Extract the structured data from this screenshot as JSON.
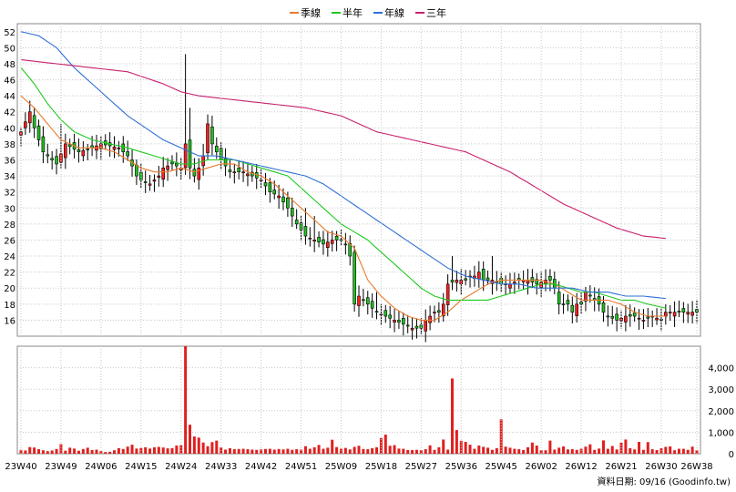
{
  "chart_data": {
    "type": "candlestick",
    "legend": [
      {
        "name": "季線",
        "color": "#e87a2c"
      },
      {
        "name": "半年",
        "color": "#1ec81e"
      },
      {
        "name": "年線",
        "color": "#2f6fd6"
      },
      {
        "name": "三年",
        "color": "#c8206e"
      }
    ],
    "price_axis": {
      "min": 14,
      "max": 53,
      "ticks": [
        16,
        18,
        20,
        22,
        24,
        26,
        28,
        30,
        32,
        34,
        36,
        38,
        40,
        42,
        44,
        46,
        48,
        50,
        52
      ]
    },
    "volume_axis": {
      "min": 0,
      "max": 5000,
      "ticks": [
        0,
        1000,
        2000,
        3000,
        4000
      ],
      "tick_labels": [
        "0",
        "1,000",
        "2,000",
        "3,000",
        "4,000"
      ]
    },
    "x_labels": [
      {
        "week": 0,
        "label": "23W40"
      },
      {
        "week": 9,
        "label": "23W49"
      },
      {
        "week": 18,
        "label": "24W06"
      },
      {
        "week": 27,
        "label": "24W15"
      },
      {
        "week": 36,
        "label": "24W24"
      },
      {
        "week": 45,
        "label": "24W33"
      },
      {
        "week": 54,
        "label": "24W42"
      },
      {
        "week": 63,
        "label": "24W51"
      },
      {
        "week": 72,
        "label": "25W09"
      },
      {
        "week": 81,
        "label": "25W18"
      },
      {
        "week": 90,
        "label": "25W27"
      },
      {
        "week": 99,
        "label": "25W36"
      },
      {
        "week": 108,
        "label": "25W45"
      },
      {
        "week": 117,
        "label": "26W02"
      },
      {
        "week": 126,
        "label": "26W12"
      },
      {
        "week": 135,
        "label": "26W21"
      },
      {
        "week": 144,
        "label": "26W30"
      },
      {
        "week": 152,
        "label": "26W38"
      }
    ],
    "close_path": [
      [
        0,
        39.5
      ],
      [
        2,
        42
      ],
      [
        3,
        40
      ],
      [
        5,
        37
      ],
      [
        7,
        36
      ],
      [
        8,
        35.5
      ],
      [
        10,
        38
      ],
      [
        13,
        37
      ],
      [
        16,
        37.5
      ],
      [
        18,
        38
      ],
      [
        22,
        37.5
      ],
      [
        24,
        36.5
      ],
      [
        26,
        34
      ],
      [
        27,
        33.5
      ],
      [
        29,
        33
      ],
      [
        31,
        34
      ],
      [
        32,
        35
      ],
      [
        34,
        35.5
      ],
      [
        36,
        35
      ],
      [
        37,
        38
      ],
      [
        38,
        35
      ],
      [
        39,
        34
      ],
      [
        40,
        35
      ],
      [
        41,
        36.5
      ],
      [
        42,
        40.5
      ],
      [
        43,
        38
      ],
      [
        45,
        36
      ],
      [
        47,
        34.5
      ],
      [
        50,
        34.5
      ],
      [
        52,
        34
      ],
      [
        54,
        33.5
      ],
      [
        56,
        32
      ],
      [
        58,
        31.5
      ],
      [
        60,
        30
      ],
      [
        62,
        28
      ],
      [
        64,
        26.5
      ],
      [
        66,
        26
      ],
      [
        68,
        25.5
      ],
      [
        70,
        26
      ],
      [
        72,
        26
      ],
      [
        73,
        25.5
      ],
      [
        74,
        24
      ],
      [
        75,
        18
      ],
      [
        76,
        19
      ],
      [
        78,
        18
      ],
      [
        80,
        17
      ],
      [
        82,
        16.5
      ],
      [
        84,
        16
      ],
      [
        86,
        15.5
      ],
      [
        88,
        15
      ],
      [
        90,
        15
      ],
      [
        91,
        16
      ],
      [
        93,
        17
      ],
      [
        94,
        17
      ],
      [
        95,
        18
      ],
      [
        96,
        20.5
      ],
      [
        98,
        21
      ],
      [
        100,
        21
      ],
      [
        101,
        21.5
      ],
      [
        102,
        21.5
      ],
      [
        103,
        22
      ],
      [
        104,
        21
      ],
      [
        106,
        21
      ],
      [
        108,
        20.5
      ],
      [
        110,
        20.5
      ],
      [
        112,
        21
      ],
      [
        114,
        21
      ],
      [
        116,
        20.5
      ],
      [
        118,
        21
      ],
      [
        119,
        21
      ],
      [
        120,
        20
      ],
      [
        121,
        18
      ],
      [
        123,
        18
      ],
      [
        124,
        17
      ],
      [
        125,
        18
      ],
      [
        126,
        18
      ],
      [
        127,
        19.5
      ],
      [
        128,
        19
      ],
      [
        129,
        18.5
      ],
      [
        130,
        18
      ],
      [
        131,
        17
      ],
      [
        132,
        16.5
      ],
      [
        134,
        16
      ],
      [
        136,
        16.5
      ],
      [
        138,
        16.5
      ],
      [
        140,
        16
      ],
      [
        142,
        16.5
      ],
      [
        144,
        16
      ],
      [
        145,
        17
      ]
    ],
    "high_spikes": [
      {
        "week": 2,
        "high": 43
      },
      {
        "week": 3,
        "high": 41.5
      },
      {
        "week": 9,
        "high": 40.5
      },
      {
        "week": 26,
        "high": 36
      },
      {
        "week": 37,
        "high": 49.2
      },
      {
        "week": 38,
        "high": 42.5
      },
      {
        "week": 41,
        "high": 38
      },
      {
        "week": 64,
        "high": 30
      },
      {
        "week": 66,
        "high": 29
      },
      {
        "week": 75,
        "high": 25
      },
      {
        "week": 80,
        "high": 19.5
      },
      {
        "week": 97,
        "high": 24
      },
      {
        "week": 106,
        "high": 24
      },
      {
        "week": 120,
        "high": 21.5
      },
      {
        "week": 121,
        "high": 20.5
      }
    ],
    "moving_averages": [
      {
        "name": "季線",
        "points": [
          [
            0,
            44
          ],
          [
            3,
            42.5
          ],
          [
            6,
            40.5
          ],
          [
            9,
            38.5
          ],
          [
            13,
            37.5
          ],
          [
            18,
            37.5
          ],
          [
            21,
            37
          ],
          [
            24,
            36
          ],
          [
            27,
            35
          ],
          [
            30,
            34.5
          ],
          [
            33,
            34.5
          ],
          [
            36,
            35
          ],
          [
            39,
            34.5
          ],
          [
            42,
            35
          ],
          [
            45,
            35.5
          ],
          [
            48,
            35.5
          ],
          [
            51,
            34.5
          ],
          [
            54,
            34
          ],
          [
            57,
            33
          ],
          [
            60,
            31.5
          ],
          [
            63,
            30
          ],
          [
            66,
            28.5
          ],
          [
            69,
            27
          ],
          [
            72,
            26.5
          ],
          [
            75,
            25
          ],
          [
            78,
            21
          ],
          [
            81,
            19
          ],
          [
            84,
            17.5
          ],
          [
            87,
            16.5
          ],
          [
            90,
            16
          ],
          [
            93,
            16
          ],
          [
            96,
            17
          ],
          [
            99,
            18.5
          ],
          [
            102,
            19.5
          ],
          [
            105,
            20.5
          ],
          [
            108,
            21
          ],
          [
            111,
            21
          ],
          [
            114,
            21
          ],
          [
            117,
            21
          ],
          [
            120,
            20.5
          ],
          [
            123,
            19.5
          ],
          [
            126,
            18.5
          ],
          [
            129,
            18.5
          ],
          [
            132,
            18.5
          ],
          [
            135,
            18
          ],
          [
            138,
            17
          ],
          [
            141,
            16.5
          ],
          [
            145,
            16.5
          ]
        ]
      },
      {
        "name": "半年",
        "points": [
          [
            0,
            47.5
          ],
          [
            3,
            45.5
          ],
          [
            6,
            43
          ],
          [
            9,
            41
          ],
          [
            12,
            39.5
          ],
          [
            16,
            38.5
          ],
          [
            20,
            38
          ],
          [
            24,
            37.5
          ],
          [
            27,
            37
          ],
          [
            30,
            36.5
          ],
          [
            33,
            36
          ],
          [
            36,
            35.5
          ],
          [
            39,
            35.5
          ],
          [
            42,
            36
          ],
          [
            45,
            36
          ],
          [
            48,
            36
          ],
          [
            51,
            35.5
          ],
          [
            54,
            35
          ],
          [
            57,
            34.5
          ],
          [
            60,
            34
          ],
          [
            63,
            32.5
          ],
          [
            66,
            31
          ],
          [
            69,
            29.5
          ],
          [
            72,
            28
          ],
          [
            75,
            27
          ],
          [
            78,
            26
          ],
          [
            81,
            24.5
          ],
          [
            84,
            23
          ],
          [
            87,
            21.5
          ],
          [
            90,
            20
          ],
          [
            93,
            19
          ],
          [
            96,
            18.5
          ],
          [
            99,
            18.5
          ],
          [
            102,
            18.5
          ],
          [
            105,
            18.5
          ],
          [
            108,
            19
          ],
          [
            111,
            19.5
          ],
          [
            114,
            20
          ],
          [
            117,
            20.5
          ],
          [
            120,
            20.5
          ],
          [
            123,
            20
          ],
          [
            126,
            19.5
          ],
          [
            129,
            19.5
          ],
          [
            132,
            19
          ],
          [
            135,
            18.5
          ],
          [
            138,
            18.5
          ],
          [
            141,
            18
          ],
          [
            145,
            17.5
          ]
        ]
      },
      {
        "name": "年線",
        "points": [
          [
            0,
            52
          ],
          [
            4,
            51.5
          ],
          [
            8,
            50
          ],
          [
            12,
            47.5
          ],
          [
            16,
            45.5
          ],
          [
            20,
            43.5
          ],
          [
            24,
            41.5
          ],
          [
            28,
            40
          ],
          [
            32,
            38.5
          ],
          [
            36,
            37.5
          ],
          [
            40,
            36.5
          ],
          [
            44,
            36.5
          ],
          [
            48,
            36
          ],
          [
            52,
            35.5
          ],
          [
            56,
            35
          ],
          [
            60,
            34.5
          ],
          [
            64,
            34
          ],
          [
            68,
            33
          ],
          [
            72,
            31.5
          ],
          [
            76,
            30
          ],
          [
            80,
            28.5
          ],
          [
            84,
            27
          ],
          [
            88,
            25.5
          ],
          [
            92,
            24
          ],
          [
            96,
            22.5
          ],
          [
            100,
            21.5
          ],
          [
            104,
            21
          ],
          [
            108,
            20.5
          ],
          [
            112,
            20.5
          ],
          [
            116,
            20
          ],
          [
            120,
            20
          ],
          [
            124,
            20
          ],
          [
            128,
            19.5
          ],
          [
            132,
            19.5
          ],
          [
            136,
            19
          ],
          [
            140,
            19
          ],
          [
            145,
            18.7
          ]
        ]
      },
      {
        "name": "三年",
        "points": [
          [
            0,
            48.5
          ],
          [
            8,
            48
          ],
          [
            16,
            47.5
          ],
          [
            24,
            47
          ],
          [
            32,
            45.5
          ],
          [
            36,
            44.5
          ],
          [
            40,
            44
          ],
          [
            48,
            43.5
          ],
          [
            56,
            43
          ],
          [
            64,
            42.5
          ],
          [
            72,
            41.5
          ],
          [
            76,
            40.5
          ],
          [
            80,
            39.5
          ],
          [
            88,
            38.5
          ],
          [
            96,
            37.5
          ],
          [
            100,
            37
          ],
          [
            104,
            36
          ],
          [
            110,
            34.5
          ],
          [
            116,
            32.5
          ],
          [
            122,
            30.5
          ],
          [
            128,
            29
          ],
          [
            134,
            27.5
          ],
          [
            140,
            26.5
          ],
          [
            145,
            26.2
          ]
        ]
      }
    ],
    "volume_base": [
      180,
      150,
      310,
      290,
      210,
      160,
      120,
      150,
      220,
      450,
      140,
      280,
      240,
      140,
      220,
      280,
      170,
      190,
      120,
      80,
      90,
      160,
      260,
      220,
      330,
      420,
      240,
      270,
      300,
      240,
      300,
      320,
      290,
      250,
      260,
      380,
      400,
      5000,
      1350,
      800,
      750,
      520,
      350,
      540,
      610,
      300,
      190,
      260,
      210,
      220,
      230,
      210,
      190,
      180,
      200,
      220,
      230,
      190,
      220,
      200,
      230,
      180,
      210,
      190,
      350,
      230,
      300,
      410,
      230,
      280,
      650,
      310,
      230,
      270,
      200,
      320,
      370,
      220,
      210,
      260,
      300,
      730,
      890,
      370,
      400,
      240,
      230,
      170,
      170,
      180,
      170,
      210,
      390,
      180,
      300,
      660,
      190,
      3500,
      1100,
      600,
      550,
      420,
      230,
      380,
      320,
      280,
      180,
      260,
      1600,
      330,
      280,
      230,
      210,
      170,
      300,
      520,
      380,
      170,
      160,
      610,
      190,
      280,
      340,
      200,
      210,
      180,
      230,
      330,
      440,
      180,
      240,
      620,
      230,
      360,
      200,
      510,
      660,
      260,
      200,
      550,
      180,
      540,
      210,
      170,
      250,
      320,
      340,
      160,
      230,
      230,
      180,
      330,
      160,
      230,
      120,
      220,
      300
    ],
    "footer": "資料日期: 09/16 (Goodinfo.tw)"
  }
}
